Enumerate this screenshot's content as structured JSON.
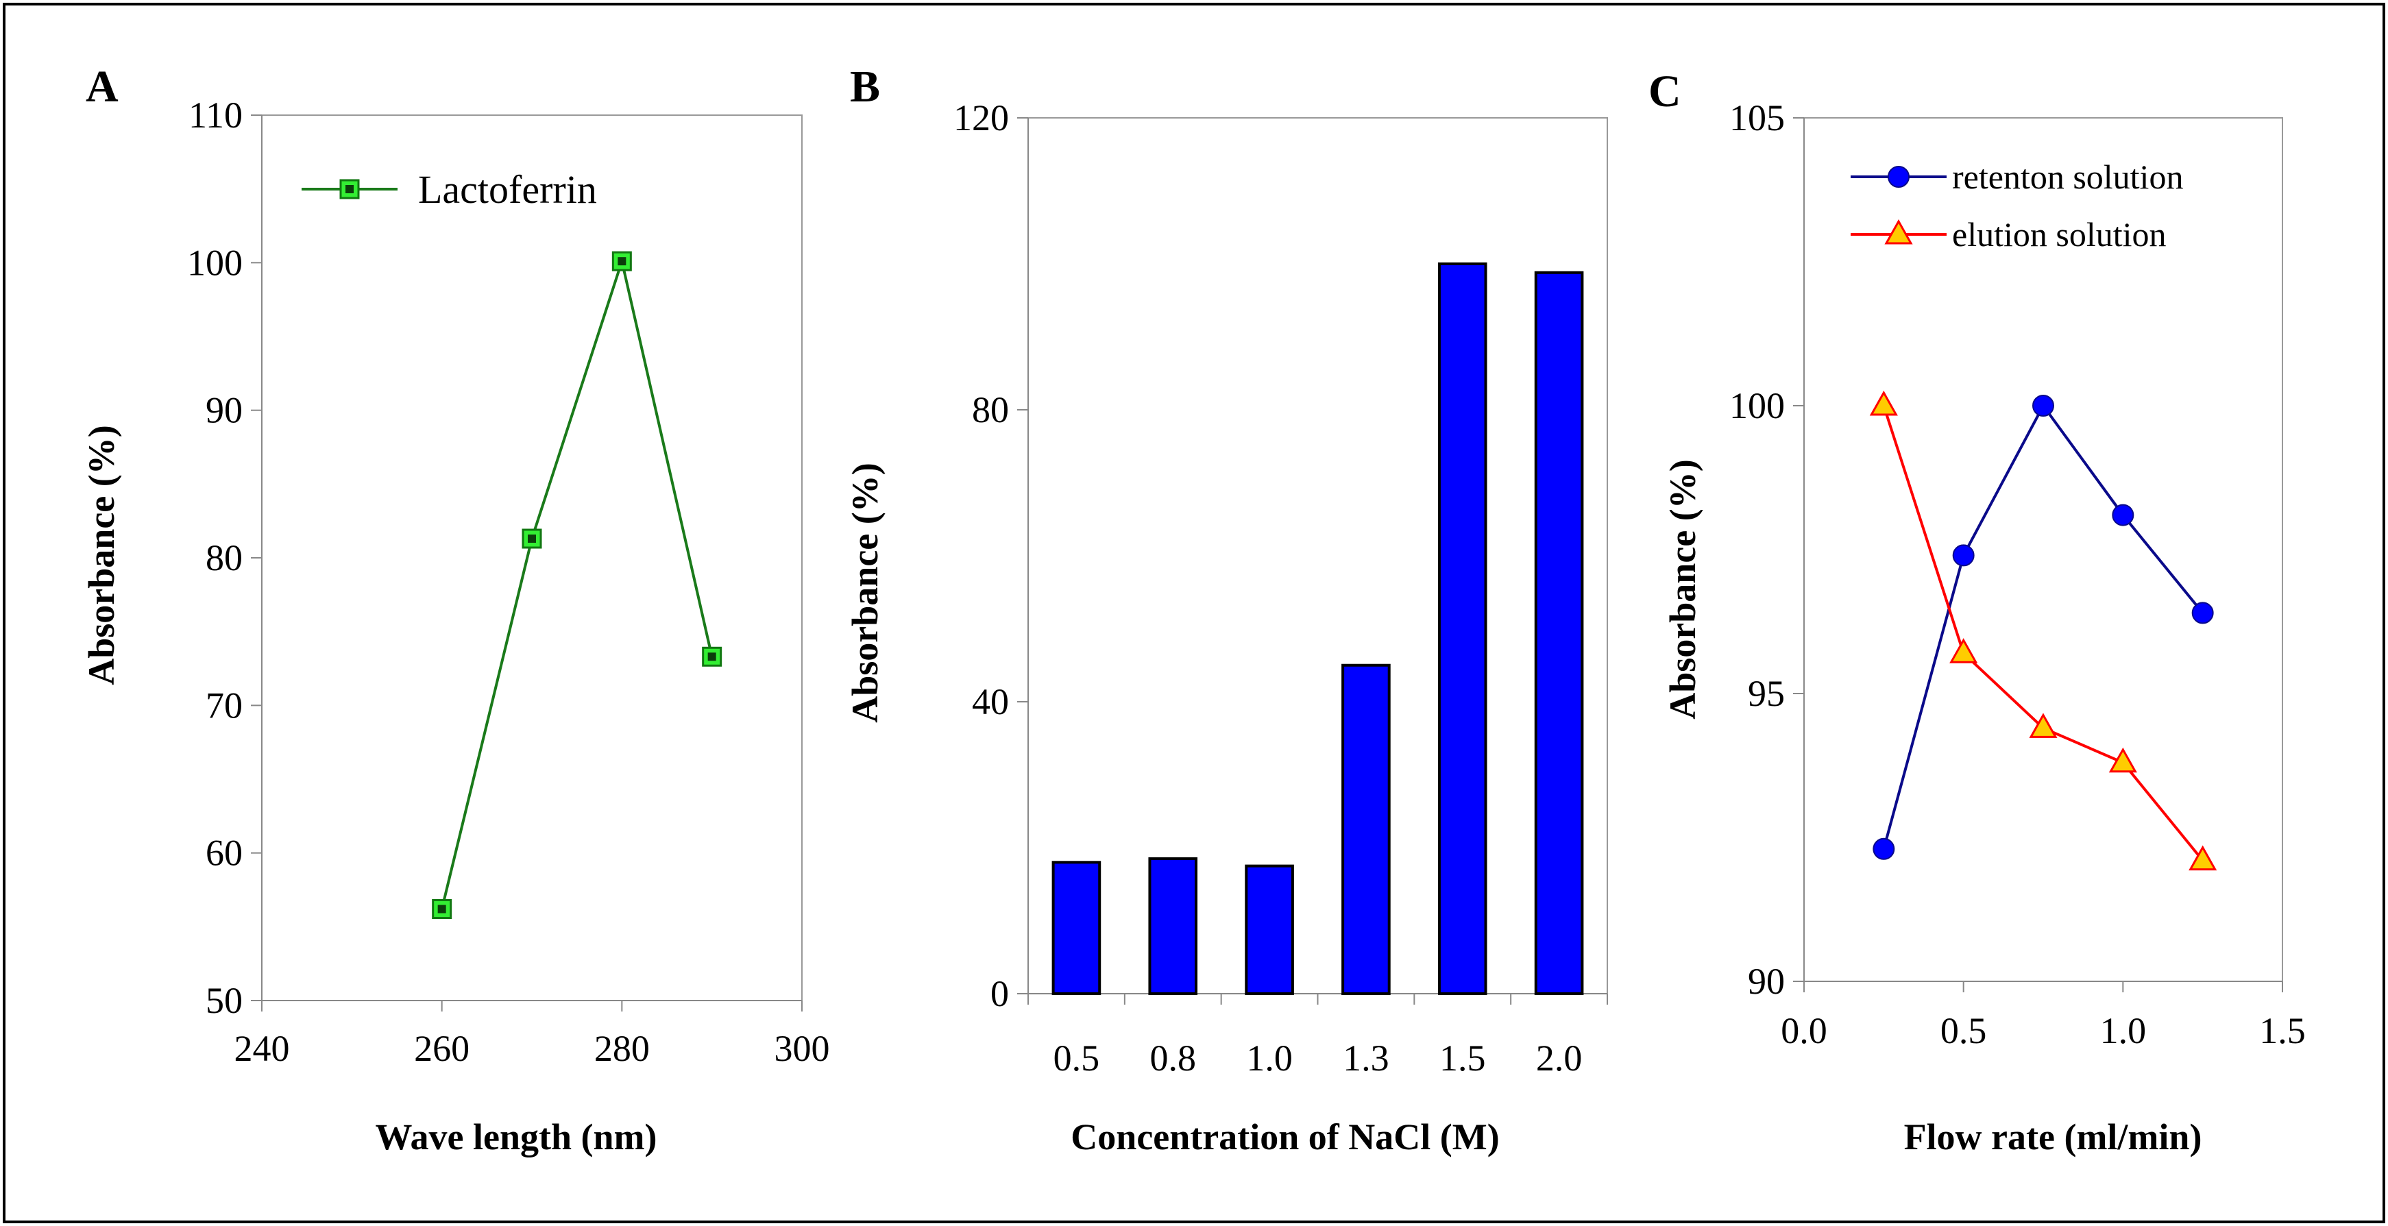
{
  "chart_data": [
    {
      "panel": "A",
      "type": "line",
      "xlabel": "Wave length (nm)",
      "ylabel": "Absorbance (%)",
      "xlim": [
        240,
        300
      ],
      "ylim": [
        50,
        110
      ],
      "xticks": [
        240,
        260,
        280,
        300
      ],
      "yticks": [
        50,
        60,
        70,
        80,
        90,
        100,
        110
      ],
      "grid": false,
      "legend": "top-left",
      "series": [
        {
          "name": "Lactoferrin",
          "marker": "square",
          "color": "#1a7a1a",
          "marker_fill": "#33ee33",
          "x": [
            260,
            270,
            280,
            290
          ],
          "y": [
            56.2,
            81.3,
            100.1,
            73.3
          ]
        }
      ]
    },
    {
      "panel": "B",
      "type": "bar",
      "xlabel": "Concentration of NaCl (M)",
      "ylabel": "Absorbance (%)",
      "ylim": [
        0,
        120
      ],
      "yticks": [
        0,
        40,
        80,
        120
      ],
      "grid": false,
      "bar_color": "#0000ff",
      "categories": [
        "0.5",
        "0.8",
        "1.0",
        "1.3",
        "1.5",
        "2.0"
      ],
      "values": [
        18,
        18.5,
        17.5,
        45,
        100,
        98.8
      ]
    },
    {
      "panel": "C",
      "type": "line",
      "xlabel": "Flow rate (ml/min)",
      "ylabel": "Absorbance (%)",
      "xlim": [
        0,
        1.5
      ],
      "ylim": [
        90,
        105
      ],
      "xticks": [
        "0.0",
        "0.5",
        "1.0",
        "1.5"
      ],
      "yticks": [
        90,
        95,
        100,
        105
      ],
      "grid": false,
      "legend": "top-right",
      "series": [
        {
          "name": "retenton solution",
          "marker": "circle",
          "color": "#0a0a8a",
          "marker_fill": "#0000ff",
          "x": [
            0.25,
            0.5,
            0.75,
            1.0,
            1.25
          ],
          "y": [
            92.3,
            97.4,
            100.0,
            98.1,
            96.4
          ]
        },
        {
          "name": "elution solution",
          "marker": "triangle",
          "color": "#ff0000",
          "marker_fill": "#ffcc00",
          "x": [
            0.25,
            0.5,
            0.75,
            1.0,
            1.25
          ],
          "y": [
            100.0,
            95.7,
            94.4,
            93.8,
            92.1
          ]
        }
      ]
    }
  ]
}
